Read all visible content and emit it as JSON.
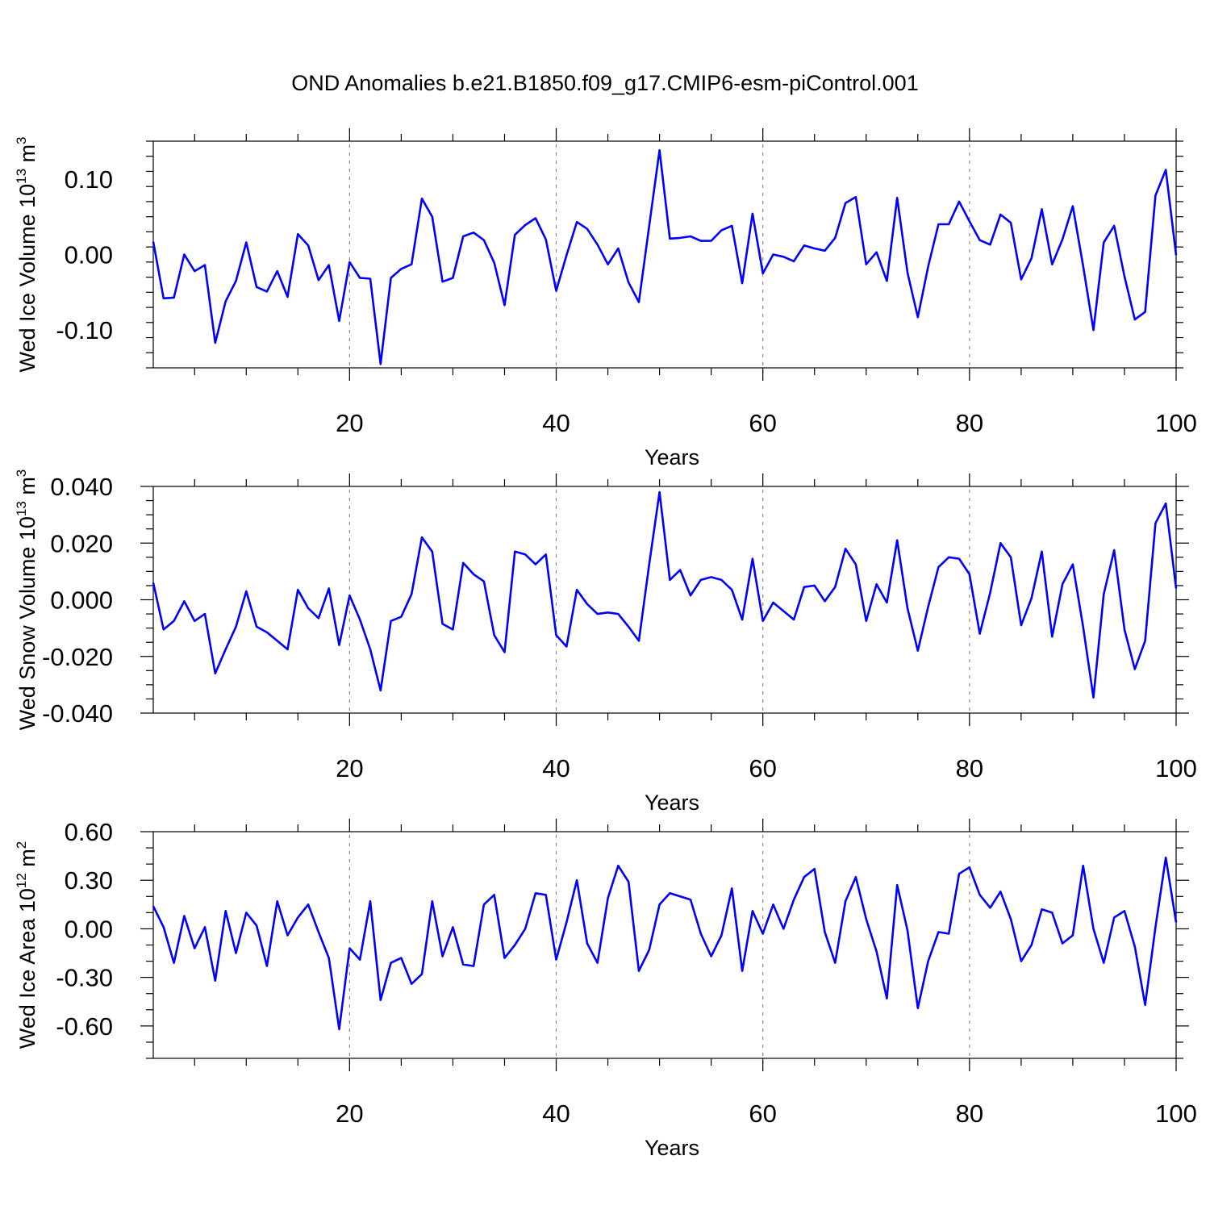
{
  "title": "OND Anomalies b.e21.B1850.f09_g17.CMIP6-esm-piControl.001",
  "chart_data": [
    {
      "type": "line",
      "ylabel": "Wed Ice Volume 10",
      "ylabel_exp": "13",
      "ylabel_unit": " m",
      "ylabel_unit_exp": "3",
      "xlabel": "Years",
      "xlim": [
        1,
        100
      ],
      "ylim": [
        -0.15,
        0.15
      ],
      "yticks": [
        -0.1,
        0.0,
        0.1
      ],
      "ytick_labels": [
        "-0.10",
        "0.00",
        "0.10"
      ],
      "yminor_step": 0.02,
      "xticks": [
        20,
        40,
        60,
        80,
        100
      ],
      "xtick_labels": [
        "20",
        "40",
        "60",
        "80",
        "100"
      ],
      "grid_x": [
        20,
        40,
        60,
        80
      ],
      "color": "#0000ff",
      "x": [
        1,
        2,
        3,
        4,
        5,
        6,
        7,
        8,
        9,
        10,
        11,
        12,
        13,
        14,
        15,
        16,
        17,
        18,
        19,
        20,
        21,
        22,
        23,
        24,
        25,
        26,
        27,
        28,
        29,
        30,
        31,
        32,
        33,
        34,
        35,
        36,
        37,
        38,
        39,
        40,
        41,
        42,
        43,
        44,
        45,
        46,
        47,
        48,
        49,
        50,
        51,
        52,
        53,
        54,
        55,
        56,
        57,
        58,
        59,
        60,
        61,
        62,
        63,
        64,
        65,
        66,
        67,
        68,
        69,
        70,
        71,
        72,
        73,
        74,
        75,
        76,
        77,
        78,
        79,
        80,
        81,
        82,
        83,
        84,
        85,
        86,
        87,
        88,
        89,
        90,
        91,
        92,
        93,
        94,
        95,
        96,
        97,
        98,
        99,
        100
      ],
      "values": [
        0.017,
        -0.058,
        -0.057,
        0.0,
        -0.022,
        -0.014,
        -0.117,
        -0.062,
        -0.035,
        0.016,
        -0.043,
        -0.049,
        -0.022,
        -0.056,
        0.027,
        0.012,
        -0.034,
        -0.014,
        -0.088,
        -0.01,
        -0.031,
        -0.032,
        -0.145,
        -0.031,
        -0.019,
        -0.013,
        0.074,
        0.05,
        -0.036,
        -0.031,
        0.024,
        0.029,
        0.019,
        -0.011,
        -0.067,
        0.026,
        0.039,
        0.048,
        0.02,
        -0.048,
        -0.001,
        0.043,
        0.034,
        0.013,
        -0.013,
        0.008,
        -0.037,
        -0.063,
        0.038,
        0.138,
        0.021,
        0.022,
        0.024,
        0.018,
        0.018,
        0.032,
        0.038,
        -0.038,
        0.054,
        -0.025,
        0.0,
        -0.003,
        -0.009,
        0.012,
        0.008,
        0.005,
        0.022,
        0.068,
        0.076,
        -0.013,
        0.003,
        -0.035,
        0.075,
        -0.024,
        -0.083,
        -0.016,
        0.04,
        0.04,
        0.07,
        0.044,
        0.019,
        0.013,
        0.053,
        0.042,
        -0.033,
        -0.005,
        0.06,
        -0.013,
        0.02,
        0.064,
        -0.015,
        -0.1,
        0.016,
        0.038,
        -0.029,
        -0.086,
        -0.076,
        0.078,
        0.112,
        -0.001
      ]
    },
    {
      "type": "line",
      "ylabel": "Wed Snow Volume 10",
      "ylabel_exp": "13",
      "ylabel_unit": " m",
      "ylabel_unit_exp": "3",
      "xlabel": "Years",
      "xlim": [
        1,
        100
      ],
      "ylim": [
        -0.04,
        0.04
      ],
      "yticks": [
        -0.04,
        -0.02,
        0.0,
        0.02,
        0.04
      ],
      "ytick_labels": [
        "-0.040",
        "-0.020",
        "0.000",
        "0.020",
        "0.040"
      ],
      "yminor_step": 0.005,
      "xticks": [
        20,
        40,
        60,
        80,
        100
      ],
      "xtick_labels": [
        "20",
        "40",
        "60",
        "80",
        "100"
      ],
      "grid_x": [
        20,
        40,
        60,
        80
      ],
      "color": "#0000ff",
      "x": [
        1,
        2,
        3,
        4,
        5,
        6,
        7,
        8,
        9,
        10,
        11,
        12,
        13,
        14,
        15,
        16,
        17,
        18,
        19,
        20,
        21,
        22,
        23,
        24,
        25,
        26,
        27,
        28,
        29,
        30,
        31,
        32,
        33,
        34,
        35,
        36,
        37,
        38,
        39,
        40,
        41,
        42,
        43,
        44,
        45,
        46,
        47,
        48,
        49,
        50,
        51,
        52,
        53,
        54,
        55,
        56,
        57,
        58,
        59,
        60,
        61,
        62,
        63,
        64,
        65,
        66,
        67,
        68,
        69,
        70,
        71,
        72,
        73,
        74,
        75,
        76,
        77,
        78,
        79,
        80,
        81,
        82,
        83,
        84,
        85,
        86,
        87,
        88,
        89,
        90,
        91,
        92,
        93,
        94,
        95,
        96,
        97,
        98,
        99,
        100
      ],
      "values": [
        0.006,
        -0.0105,
        -0.0075,
        -0.0005,
        -0.0075,
        -0.005,
        -0.026,
        -0.0175,
        -0.0095,
        0.003,
        -0.0095,
        -0.0115,
        -0.0145,
        -0.0175,
        0.0035,
        -0.003,
        -0.0065,
        0.004,
        -0.016,
        0.0015,
        -0.007,
        -0.0175,
        -0.032,
        -0.0075,
        -0.006,
        0.002,
        0.022,
        0.017,
        -0.0085,
        -0.0105,
        0.013,
        0.009,
        0.0065,
        -0.0125,
        -0.0185,
        0.017,
        0.016,
        0.0125,
        0.016,
        -0.0125,
        -0.0165,
        0.0035,
        -0.0015,
        -0.005,
        -0.0045,
        -0.005,
        -0.0095,
        -0.0145,
        0.0125,
        0.038,
        0.007,
        0.0105,
        0.0015,
        0.007,
        0.008,
        0.007,
        0.0035,
        -0.007,
        0.0145,
        -0.0075,
        -0.001,
        -0.004,
        -0.007,
        0.0045,
        0.005,
        -0.0005,
        0.0045,
        0.018,
        0.0125,
        -0.0075,
        0.0055,
        -0.001,
        0.021,
        -0.003,
        -0.018,
        -0.0025,
        0.0115,
        0.015,
        0.0145,
        0.009,
        -0.012,
        0.0025,
        0.02,
        0.015,
        -0.009,
        0.0005,
        0.017,
        -0.013,
        0.0055,
        0.0125,
        -0.0095,
        -0.0345,
        0.002,
        0.0175,
        -0.0105,
        -0.0245,
        -0.0145,
        0.027,
        0.034,
        0.004
      ]
    },
    {
      "type": "line",
      "ylabel": "Wed Ice Area 10",
      "ylabel_exp": "12",
      "ylabel_unit": " m",
      "ylabel_unit_exp": "2",
      "xlabel": "Years",
      "xlim": [
        1,
        100
      ],
      "ylim": [
        -0.8,
        0.6
      ],
      "yticks": [
        -0.6,
        -0.3,
        0.0,
        0.3,
        0.6
      ],
      "ytick_labels": [
        "-0.60",
        "-0.30",
        "0.00",
        "0.30",
        "0.60"
      ],
      "yminor_step": 0.1,
      "xticks": [
        20,
        40,
        60,
        80,
        100
      ],
      "xtick_labels": [
        "20",
        "40",
        "60",
        "80",
        "100"
      ],
      "grid_x": [
        20,
        40,
        60,
        80
      ],
      "color": "#0000ff",
      "x": [
        1,
        2,
        3,
        4,
        5,
        6,
        7,
        8,
        9,
        10,
        11,
        12,
        13,
        14,
        15,
        16,
        17,
        18,
        19,
        20,
        21,
        22,
        23,
        24,
        25,
        26,
        27,
        28,
        29,
        30,
        31,
        32,
        33,
        34,
        35,
        36,
        37,
        38,
        39,
        40,
        41,
        42,
        43,
        44,
        45,
        46,
        47,
        48,
        49,
        50,
        51,
        52,
        53,
        54,
        55,
        56,
        57,
        58,
        59,
        60,
        61,
        62,
        63,
        64,
        65,
        66,
        67,
        68,
        69,
        70,
        71,
        72,
        73,
        74,
        75,
        76,
        77,
        78,
        79,
        80,
        81,
        82,
        83,
        84,
        85,
        86,
        87,
        88,
        89,
        90,
        91,
        92,
        93,
        94,
        95,
        96,
        97,
        98,
        99,
        100
      ],
      "values": [
        0.14,
        0.01,
        -0.21,
        0.08,
        -0.12,
        0.01,
        -0.32,
        0.11,
        -0.15,
        0.1,
        0.02,
        -0.23,
        0.17,
        -0.04,
        0.07,
        0.15,
        -0.02,
        -0.18,
        -0.62,
        -0.12,
        -0.19,
        0.17,
        -0.44,
        -0.21,
        -0.18,
        -0.34,
        -0.28,
        0.17,
        -0.17,
        0.01,
        -0.22,
        -0.23,
        0.15,
        0.21,
        -0.18,
        -0.1,
        0.0,
        0.22,
        0.21,
        -0.19,
        0.04,
        0.3,
        -0.09,
        -0.21,
        0.19,
        0.39,
        0.29,
        -0.26,
        -0.13,
        0.15,
        0.22,
        0.2,
        0.18,
        -0.03,
        -0.17,
        -0.04,
        0.25,
        -0.26,
        0.11,
        -0.03,
        0.15,
        0.0,
        0.18,
        0.32,
        0.37,
        -0.02,
        -0.21,
        0.17,
        0.32,
        0.06,
        -0.14,
        -0.43,
        0.27,
        -0.01,
        -0.49,
        -0.2,
        -0.02,
        -0.03,
        0.34,
        0.38,
        0.21,
        0.13,
        0.23,
        0.06,
        -0.2,
        -0.1,
        0.12,
        0.1,
        -0.09,
        -0.04,
        0.39,
        0.0,
        -0.21,
        0.07,
        0.11,
        -0.11,
        -0.47,
        0.01,
        0.44,
        0.04
      ]
    }
  ]
}
